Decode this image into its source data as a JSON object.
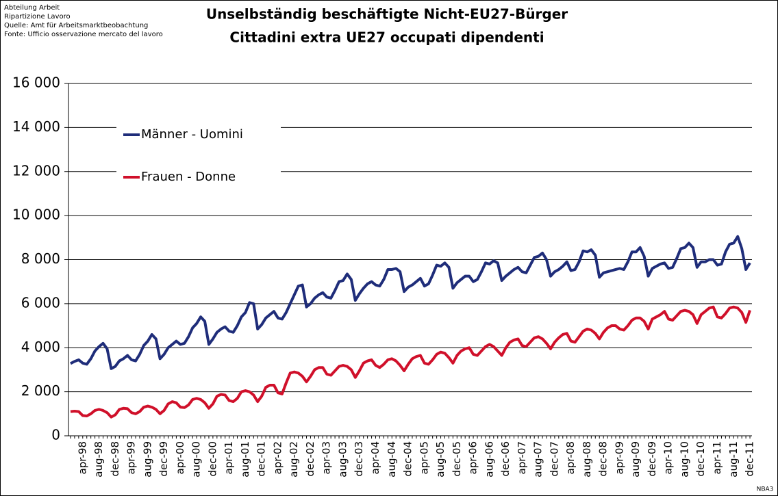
{
  "chart_data": {
    "type": "line",
    "title": "Unselbständig beschäftigte Nicht-EU27-Bürger",
    "subtitle": "Cittadini extra UE27 occupati dipendenti",
    "source": [
      "Abteilung Arbeit",
      "Ripartizione Lavoro",
      "Quelle: Amt für Arbeitsmarktbeobachtung",
      "Fonte: Ufficio osservazione mercato del lavoro"
    ],
    "note": "NBA3",
    "categories": [
      null,
      null,
      null,
      "apr-98",
      null,
      null,
      null,
      "aug-98",
      null,
      null,
      null,
      "dec-98",
      null,
      null,
      null,
      "apr-99",
      null,
      null,
      null,
      "aug-99",
      null,
      null,
      null,
      "dec-99",
      null,
      null,
      null,
      "apr-00",
      null,
      null,
      null,
      "aug-00",
      null,
      null,
      null,
      "dec-00",
      null,
      null,
      null,
      "apr-01",
      null,
      null,
      null,
      "aug-01",
      null,
      null,
      null,
      "dec-01",
      null,
      null,
      null,
      "apr-02",
      null,
      null,
      null,
      "aug-02",
      null,
      null,
      null,
      "dec-02",
      null,
      null,
      null,
      "apr-03",
      null,
      null,
      null,
      "aug-03",
      null,
      null,
      null,
      "dec-03",
      null,
      null,
      null,
      "apr-04",
      null,
      null,
      null,
      "aug-04",
      null,
      null,
      null,
      "dec-04",
      null,
      null,
      null,
      "apr-05",
      null,
      null,
      null,
      "aug-05",
      null,
      null,
      null,
      "dec-05",
      null,
      null,
      null,
      "apr-06",
      null,
      null,
      null,
      "aug-06",
      null,
      null,
      null,
      "dec-06",
      null,
      null,
      null,
      "apr-07",
      null,
      null,
      null,
      "aug-07",
      null,
      null,
      null,
      "dec-07",
      null,
      null,
      null,
      "apr-08",
      null,
      null,
      null,
      "aug-08",
      null,
      null,
      null,
      "dec-08",
      null,
      null,
      null,
      "apr-09",
      null,
      null,
      null,
      "aug-09",
      null,
      null,
      null,
      "dec-09",
      null,
      null,
      null,
      "apr-10",
      null,
      null,
      null,
      "aug-10",
      null,
      null,
      null,
      "dec-10",
      null,
      null,
      null,
      "apr-11",
      null,
      null,
      null,
      "aug-11",
      null,
      null,
      null,
      "dec-11"
    ],
    "series": [
      {
        "name": "Männer - Uomini",
        "color": "#1f2d7a",
        "values": [
          3280,
          3380,
          3450,
          3300,
          3250,
          3500,
          3850,
          4050,
          4200,
          3950,
          3050,
          3150,
          3400,
          3500,
          3650,
          3450,
          3400,
          3700,
          4100,
          4300,
          4600,
          4400,
          3500,
          3700,
          4000,
          4150,
          4300,
          4150,
          4200,
          4500,
          4900,
          5100,
          5400,
          5200,
          4150,
          4400,
          4700,
          4850,
          4950,
          4750,
          4700,
          5000,
          5400,
          5600,
          6050,
          6000,
          4850,
          5050,
          5350,
          5500,
          5650,
          5350,
          5300,
          5600,
          6000,
          6400,
          6800,
          6850,
          5850,
          6000,
          6250,
          6400,
          6500,
          6300,
          6250,
          6600,
          7000,
          7050,
          7350,
          7100,
          6150,
          6450,
          6700,
          6900,
          7000,
          6850,
          6800,
          7100,
          7550,
          7550,
          7600,
          7450,
          6550,
          6750,
          6850,
          7000,
          7150,
          6800,
          6900,
          7300,
          7750,
          7700,
          7850,
          7650,
          6700,
          6950,
          7100,
          7250,
          7250,
          7000,
          7100,
          7450,
          7850,
          7800,
          7950,
          7850,
          7050,
          7250,
          7400,
          7550,
          7650,
          7450,
          7400,
          7750,
          8100,
          8150,
          8300,
          8000,
          7250,
          7450,
          7550,
          7700,
          7900,
          7500,
          7550,
          7900,
          8400,
          8350,
          8450,
          8200,
          7200,
          7400,
          7450,
          7500,
          7550,
          7600,
          7550,
          7900,
          8350,
          8350,
          8550,
          8150,
          7250,
          7600,
          7700,
          7800,
          7850,
          7600,
          7650,
          8050,
          8500,
          8550,
          8750,
          8550,
          7650,
          7900,
          7900,
          8000,
          8000,
          7750,
          7800,
          8350,
          8700,
          8750,
          9050,
          8500,
          7550,
          7850
        ]
      },
      {
        "name": "Frauen - Donne",
        "color": "#d0102a",
        "values": [
          1100,
          1120,
          1100,
          920,
          900,
          1000,
          1150,
          1200,
          1150,
          1050,
          850,
          950,
          1200,
          1250,
          1230,
          1050,
          1000,
          1100,
          1300,
          1350,
          1300,
          1200,
          1000,
          1150,
          1450,
          1550,
          1500,
          1300,
          1280,
          1400,
          1650,
          1700,
          1650,
          1500,
          1250,
          1450,
          1800,
          1880,
          1850,
          1600,
          1550,
          1700,
          2000,
          2050,
          2000,
          1850,
          1550,
          1800,
          2200,
          2300,
          2300,
          1950,
          1900,
          2400,
          2850,
          2900,
          2850,
          2700,
          2450,
          2700,
          3000,
          3100,
          3100,
          2800,
          2750,
          2950,
          3150,
          3200,
          3150,
          3000,
          2650,
          2950,
          3300,
          3400,
          3450,
          3200,
          3100,
          3250,
          3450,
          3500,
          3400,
          3200,
          2950,
          3250,
          3500,
          3600,
          3650,
          3300,
          3250,
          3450,
          3700,
          3800,
          3750,
          3550,
          3300,
          3650,
          3850,
          3950,
          4000,
          3700,
          3650,
          3850,
          4050,
          4150,
          4050,
          3850,
          3650,
          4000,
          4250,
          4350,
          4400,
          4100,
          4050,
          4250,
          4450,
          4500,
          4400,
          4200,
          3950,
          4250,
          4450,
          4600,
          4650,
          4300,
          4250,
          4500,
          4750,
          4850,
          4800,
          4650,
          4400,
          4700,
          4900,
          5000,
          5000,
          4850,
          4800,
          5000,
          5250,
          5350,
          5350,
          5200,
          4850,
          5300,
          5400,
          5500,
          5650,
          5300,
          5250,
          5450,
          5650,
          5700,
          5650,
          5500,
          5100,
          5500,
          5650,
          5800,
          5850,
          5400,
          5350,
          5550,
          5800,
          5850,
          5800,
          5600,
          5150,
          5700
        ]
      }
    ],
    "ylim": [
      0,
      16000
    ],
    "yticks": [
      0,
      {
        "value": 2000,
        "label": "2 000"
      },
      {
        "value": 4000,
        "label": "4 000"
      },
      {
        "value": 6000,
        "label": "6 000"
      },
      {
        "value": 8000,
        "label": "8 000"
      },
      {
        "value": 10000,
        "label": "10 000"
      },
      {
        "value": 12000,
        "label": "12 000"
      },
      {
        "value": 14000,
        "label": "14 000"
      },
      {
        "value": 16000,
        "label": "16 000"
      }
    ],
    "grid": true,
    "legend": "upper left"
  }
}
